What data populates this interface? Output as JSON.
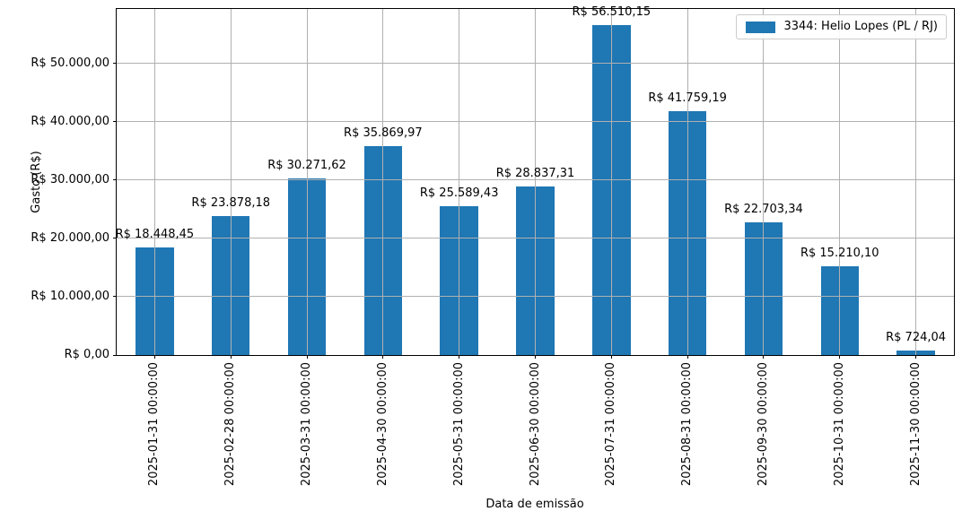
{
  "chart_data": {
    "type": "bar",
    "title": "",
    "xlabel": "Data de emissão",
    "ylabel": "Gasto (R$)",
    "legend_label": "3344: Helio Lopes (PL / RJ)",
    "legend_position": "upper right",
    "grid": true,
    "grid_on_top_of_bars": true,
    "bar_color": "#1f77b4",
    "grid_color": "#b0b0b0",
    "spine_color": "#000000",
    "text_color": "#000000",
    "ylim": [
      0,
      59336
    ],
    "categories": [
      "2025-01-31 00:00:00",
      "2025-02-28 00:00:00",
      "2025-03-31 00:00:00",
      "2025-04-30 00:00:00",
      "2025-05-31 00:00:00",
      "2025-06-30 00:00:00",
      "2025-07-31 00:00:00",
      "2025-08-31 00:00:00",
      "2025-09-30 00:00:00",
      "2025-10-31 00:00:00",
      "2025-11-30 00:00:00"
    ],
    "series": [
      {
        "name": "3344: Helio Lopes (PL / RJ)",
        "values": [
          18448.45,
          23878.18,
          30271.62,
          35869.97,
          25589.43,
          28837.31,
          56510.15,
          41759.19,
          22703.34,
          15210.1,
          724.04
        ],
        "value_labels": [
          "R$ 18.448,45",
          "R$ 23.878,18",
          "R$ 30.271,62",
          "R$ 35.869,97",
          "R$ 25.589,43",
          "R$ 28.837,31",
          "R$ 56.510,15",
          "R$ 41.759,19",
          "R$ 22.703,34",
          "R$ 15.210,10",
          "R$ 724,04"
        ]
      }
    ],
    "yticks": [
      {
        "value": 0,
        "label": "R$ 0,00"
      },
      {
        "value": 10000,
        "label": "R$ 10.000,00"
      },
      {
        "value": 20000,
        "label": "R$ 20.000,00"
      },
      {
        "value": 30000,
        "label": "R$ 30.000,00"
      },
      {
        "value": 40000,
        "label": "R$ 40.000,00"
      },
      {
        "value": 50000,
        "label": "R$ 50.000,00"
      }
    ]
  }
}
